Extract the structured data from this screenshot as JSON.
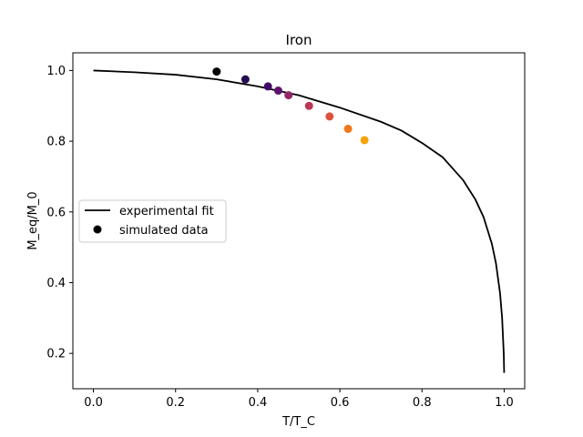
{
  "chart_data": {
    "type": "scatter",
    "title": "Iron",
    "xlabel": "T/T_C",
    "ylabel": "M_eq/M_0",
    "xlim": [
      -0.05,
      1.05
    ],
    "ylim": [
      0.1,
      1.05
    ],
    "xticks": [
      0.0,
      0.2,
      0.4,
      0.6,
      0.8,
      1.0
    ],
    "xtick_labels": [
      "0.0",
      "0.2",
      "0.4",
      "0.6",
      "0.8",
      "1.0"
    ],
    "yticks": [
      0.2,
      0.4,
      0.6,
      0.8,
      1.0
    ],
    "ytick_labels": [
      "0.2",
      "0.4",
      "0.6",
      "0.8",
      "1.0"
    ],
    "grid": false,
    "legend_position": "center-left",
    "series": [
      {
        "name": "experimental fit",
        "kind": "line",
        "color": "#000000",
        "x": [
          0.0,
          0.1,
          0.2,
          0.3,
          0.4,
          0.5,
          0.6,
          0.7,
          0.75,
          0.8,
          0.85,
          0.9,
          0.93,
          0.95,
          0.97,
          0.98,
          0.99,
          0.995,
          0.999,
          1.0
        ],
        "y": [
          1.0,
          0.995,
          0.988,
          0.975,
          0.955,
          0.93,
          0.895,
          0.855,
          0.83,
          0.795,
          0.755,
          0.69,
          0.635,
          0.585,
          0.51,
          0.455,
          0.37,
          0.3,
          0.2,
          0.145
        ]
      },
      {
        "name": "simulated data",
        "kind": "scatter",
        "legend_color": "#000000",
        "x": [
          0.3,
          0.37,
          0.425,
          0.45,
          0.475,
          0.525,
          0.575,
          0.62,
          0.66
        ],
        "y": [
          0.997,
          0.975,
          0.955,
          0.943,
          0.93,
          0.9,
          0.87,
          0.835,
          0.803
        ],
        "colors": [
          "#000004",
          "#240c4f",
          "#420a68",
          "#5d126e",
          "#932667",
          "#bc3754",
          "#dd513a",
          "#f37819",
          "#f7a40a"
        ]
      }
    ]
  }
}
